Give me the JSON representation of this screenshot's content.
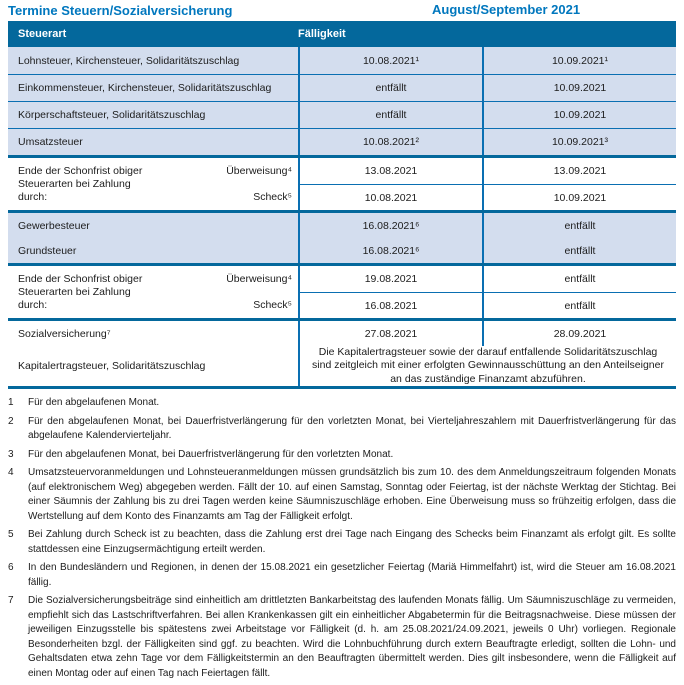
{
  "colors": {
    "accent": "#0077BE",
    "headerBg": "#04689C",
    "rowBlue": "#D3DDEE",
    "line": "#0A6FB2",
    "groupLine": "#04689C",
    "text": "#1C1C1C"
  },
  "page": {
    "title": "Termine Steuern/Sozialversicherung",
    "period": "August/September 2021"
  },
  "table": {
    "header": {
      "col1": "Steuerart",
      "col2": "Fälligkeit"
    },
    "groups": [
      {
        "rows": [
          {
            "label": "Lohnsteuer, Kirchensteuer, Solidaritätszuschlag",
            "aug": "10.08.2021¹",
            "sep": "10.09.2021¹"
          },
          {
            "label": "Einkommensteuer, Kirchensteuer, Solidaritätszuschlag",
            "aug": "entfällt",
            "sep": "10.09.2021"
          },
          {
            "label": "Körperschaftsteuer, Solidaritätszuschlag",
            "aug": "entfällt",
            "sep": "10.09.2021"
          },
          {
            "label": "Umsatzsteuer",
            "aug": "10.08.2021²",
            "sep": "10.09.2021³"
          }
        ]
      },
      {
        "label": "Ende der Schonfrist obiger\nSteuerarten bei Zahlung\ndurch:",
        "rows": [
          {
            "method": "Überweisung⁴",
            "aug": "13.08.2021",
            "sep": "13.09.2021"
          },
          {
            "method": "Scheck⁵",
            "aug": "10.08.2021",
            "sep": "10.09.2021"
          }
        ]
      },
      {
        "rows": [
          {
            "label": "Gewerbesteuer",
            "aug": "16.08.2021⁶",
            "sep": "entfällt"
          },
          {
            "label": "Grundsteuer",
            "aug": "16.08.2021⁶",
            "sep": "entfällt"
          }
        ]
      },
      {
        "label": "Ende der Schonfrist obiger\nSteuerarten bei Zahlung\ndurch:",
        "rows": [
          {
            "method": "Überweisung⁴",
            "aug": "19.08.2021",
            "sep": "entfällt"
          },
          {
            "method": "Scheck⁵",
            "aug": "16.08.2021",
            "sep": "entfällt"
          }
        ]
      },
      {
        "rows": [
          {
            "label": "Sozialversicherung⁷",
            "aug": "27.08.2021",
            "sep": "28.09.2021"
          }
        ],
        "note_label": "Kapitalertragsteuer, Solidaritätszuschlag",
        "note": "Die Kapitalertragsteuer sowie der darauf entfallende Solidaritätszuschlag sind zeitgleich mit einer erfolgten Gewinnausschüttung an den Anteilseigner an das zuständige Finanzamt abzuführen."
      }
    ]
  },
  "footnotes": [
    {
      "num": "1",
      "text": "Für den abgelaufenen Monat."
    },
    {
      "num": "2",
      "text": "Für den abgelaufenen Monat, bei Dauerfristverlängerung für den vorletzten Monat, bei Vierteljahreszahlern mit Dauerfristverlängerung für das abgelaufene Kalendervierteljahr."
    },
    {
      "num": "3",
      "text": "Für den abgelaufenen Monat, bei Dauerfristverlängerung für den vorletzten Monat."
    },
    {
      "num": "4",
      "text": "Umsatzsteuervoranmeldungen und Lohnsteueranmeldungen müssen grundsätzlich bis zum 10. des dem Anmeldungszeitraum folgenden Monats (auf elektronischem Weg) abgegeben werden. Fällt der 10. auf einen Samstag, Sonntag oder Feiertag, ist der nächste Werktag der Stichtag. Bei einer Säumnis der Zahlung bis zu drei Tagen werden keine Säumniszuschläge erhoben. Eine Überweisung muss so frühzeitig erfolgen, dass die Wertstellung auf dem Konto des Finanzamts am Tag der Fälligkeit erfolgt."
    },
    {
      "num": "5",
      "text": "Bei Zahlung durch Scheck ist zu beachten, dass die Zahlung erst drei Tage nach Eingang des Schecks beim Finanzamt als erfolgt gilt. Es sollte stattdessen eine Einzugsermächtigung erteilt werden."
    },
    {
      "num": "6",
      "text": "In den Bundesländern und Regionen, in denen der 15.08.2021 ein gesetzlicher Feiertag (Mariä Himmelfahrt) ist, wird die Steuer am 16.08.2021 fällig."
    },
    {
      "num": "7",
      "text": "Die Sozialversicherungsbeiträge sind einheitlich am drittletzten Bankarbeitstag des laufenden Monats fällig. Um Säumniszuschläge zu vermeiden, empfiehlt sich das Lastschriftverfahren. Bei allen Krankenkassen gilt ein einheitlicher Abgabetermin für die Beitragsnachweise. Diese müssen der jeweiligen Einzugsstelle bis spätestens zwei Arbeitstage vor Fälligkeit (d. h. am 25.08.2021/24.09.2021, jeweils 0 Uhr) vorliegen. Regionale Besonderheiten bzgl. der Fälligkeiten sind ggf. zu beachten. Wird die Lohnbuchführung durch extern Beauftragte erledigt, sollten die Lohn- und Gehaltsdaten etwa zehn Tage vor dem Fälligkeitstermin an den Beauftragten übermittelt werden. Dies gilt insbesondere, wenn die Fälligkeit auf einen Montag oder auf einen Tag nach Feiertagen fällt."
    }
  ]
}
